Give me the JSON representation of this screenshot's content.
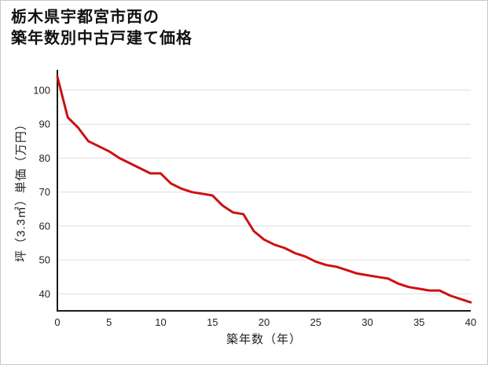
{
  "title": {
    "line1": "栃木県宇都宮市西の",
    "line2": "築年数別中古戸建て価格"
  },
  "chart_data": {
    "type": "line",
    "title": "栃木県宇都宮市西の築年数別中古戸建て価格",
    "xlabel": "築年数（年）",
    "ylabel": "坪（3.3㎡）単価（万円）",
    "x": [
      0,
      1,
      2,
      3,
      4,
      5,
      6,
      7,
      8,
      9,
      10,
      11,
      12,
      13,
      14,
      15,
      16,
      17,
      18,
      19,
      20,
      21,
      22,
      23,
      24,
      25,
      26,
      27,
      28,
      29,
      30,
      31,
      32,
      33,
      34,
      35,
      36,
      37,
      38,
      39,
      40
    ],
    "values": [
      104,
      92,
      89,
      85,
      83.5,
      82,
      80,
      78.5,
      77,
      75.5,
      75.5,
      72.5,
      71,
      70,
      69.5,
      69,
      66,
      64,
      63.5,
      58.5,
      56,
      54.5,
      53.5,
      52,
      51,
      49.5,
      48.5,
      48,
      47,
      46,
      45.5,
      45,
      44.5,
      43,
      42,
      41.5,
      41,
      41,
      39.5,
      38.5,
      37.5
    ],
    "xlim": [
      0,
      40
    ],
    "ylim": [
      35,
      106
    ],
    "x_ticks": [
      0,
      5,
      10,
      15,
      20,
      25,
      30,
      35,
      40
    ],
    "y_ticks": [
      40,
      50,
      60,
      70,
      80,
      90,
      100
    ],
    "grid": "horizontal",
    "legend": "none",
    "line_color": "#cc1212",
    "axis_color": "#1a1a1a",
    "grid_color": "#dedede"
  }
}
